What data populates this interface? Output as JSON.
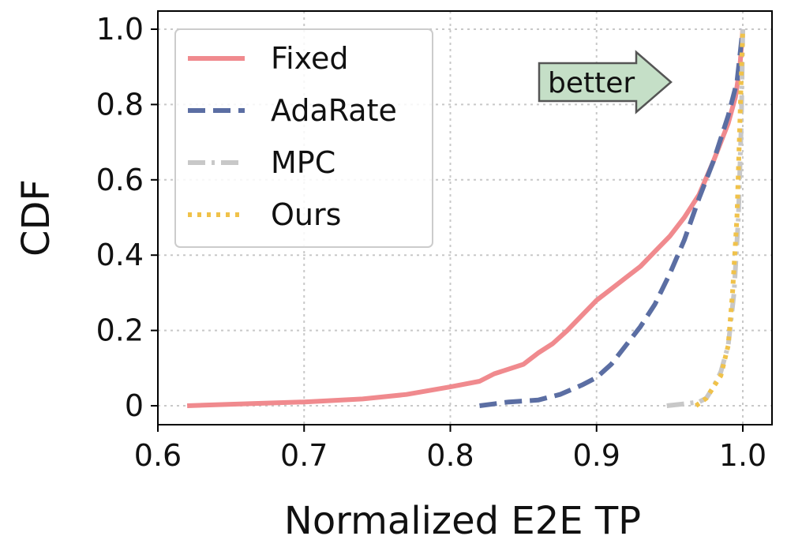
{
  "chart_data": {
    "type": "line",
    "xlabel": "Normalized E2E TP",
    "ylabel": "CDF",
    "xlim": [
      0.6,
      1.0
    ],
    "ylim": [
      0.0,
      1.0
    ],
    "x_ticks": [
      0.6,
      0.7,
      0.8,
      0.9,
      1.0
    ],
    "x_tick_labels": [
      "0.6",
      "0.7",
      "0.8",
      "0.9",
      "1.0"
    ],
    "y_ticks": [
      0.0,
      0.2,
      0.4,
      0.6,
      0.8,
      1.0
    ],
    "y_tick_labels": [
      "0",
      "0.2",
      "0.4",
      "0.6",
      "0.8",
      "1.0"
    ],
    "grid": true,
    "legend_position": "top-left",
    "annotation": {
      "text": "better",
      "style": "right-arrow",
      "color": "#c5dfc7"
    },
    "series": [
      {
        "name": "Fixed",
        "color": "#f08a8e",
        "dash": "solid",
        "points": [
          [
            0.62,
            0.0
          ],
          [
            0.65,
            0.004
          ],
          [
            0.7,
            0.01
          ],
          [
            0.74,
            0.018
          ],
          [
            0.77,
            0.03
          ],
          [
            0.8,
            0.05
          ],
          [
            0.82,
            0.065
          ],
          [
            0.83,
            0.085
          ],
          [
            0.85,
            0.11
          ],
          [
            0.86,
            0.14
          ],
          [
            0.87,
            0.165
          ],
          [
            0.88,
            0.2
          ],
          [
            0.89,
            0.24
          ],
          [
            0.9,
            0.28
          ],
          [
            0.91,
            0.31
          ],
          [
            0.92,
            0.34
          ],
          [
            0.93,
            0.37
          ],
          [
            0.94,
            0.41
          ],
          [
            0.95,
            0.45
          ],
          [
            0.96,
            0.5
          ],
          [
            0.97,
            0.56
          ],
          [
            0.98,
            0.65
          ],
          [
            0.99,
            0.75
          ],
          [
            0.995,
            0.82
          ],
          [
            0.998,
            0.9
          ],
          [
            1.0,
            1.0
          ]
        ]
      },
      {
        "name": "AdaRate",
        "color": "#5b6ea3",
        "dash": "dashed",
        "points": [
          [
            0.82,
            0.0
          ],
          [
            0.84,
            0.01
          ],
          [
            0.86,
            0.015
          ],
          [
            0.875,
            0.03
          ],
          [
            0.89,
            0.055
          ],
          [
            0.9,
            0.075
          ],
          [
            0.91,
            0.11
          ],
          [
            0.92,
            0.16
          ],
          [
            0.93,
            0.21
          ],
          [
            0.94,
            0.27
          ],
          [
            0.95,
            0.35
          ],
          [
            0.96,
            0.44
          ],
          [
            0.97,
            0.55
          ],
          [
            0.98,
            0.65
          ],
          [
            0.99,
            0.77
          ],
          [
            0.996,
            0.86
          ],
          [
            1.0,
            1.0
          ]
        ]
      },
      {
        "name": "MPC",
        "color": "#c8c8c8",
        "dash": "dashdot",
        "points": [
          [
            0.948,
            0.0
          ],
          [
            0.96,
            0.005
          ],
          [
            0.97,
            0.01
          ],
          [
            0.975,
            0.02
          ],
          [
            0.98,
            0.05
          ],
          [
            0.985,
            0.09
          ],
          [
            0.99,
            0.16
          ],
          [
            0.994,
            0.3
          ],
          [
            0.997,
            0.5
          ],
          [
            0.999,
            0.75
          ],
          [
            1.0,
            1.0
          ]
        ]
      },
      {
        "name": "Ours",
        "color": "#f0c24a",
        "dash": "dotted",
        "points": [
          [
            0.968,
            0.0
          ],
          [
            0.975,
            0.02
          ],
          [
            0.98,
            0.05
          ],
          [
            0.985,
            0.08
          ],
          [
            0.99,
            0.16
          ],
          [
            0.993,
            0.3
          ],
          [
            0.996,
            0.5
          ],
          [
            0.998,
            0.75
          ],
          [
            0.999,
            0.88
          ],
          [
            1.0,
            1.0
          ]
        ]
      }
    ]
  }
}
